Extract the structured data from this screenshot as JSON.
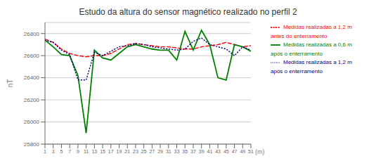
{
  "chart_data": {
    "type": "line",
    "title": "Estudo da altura do sensor magnético realizado no perfil 2",
    "xlabel": "(m)",
    "ylabel": "nT",
    "x": [
      1,
      3,
      5,
      7,
      9,
      11,
      13,
      15,
      17,
      19,
      21,
      23,
      25,
      27,
      29,
      31,
      33,
      35,
      37,
      39,
      41,
      43,
      45,
      47,
      49,
      51
    ],
    "xlim": [
      1,
      51
    ],
    "xticks": [
      1,
      3,
      5,
      7,
      9,
      11,
      13,
      15,
      17,
      19,
      21,
      23,
      25,
      27,
      29,
      31,
      33,
      35,
      37,
      39,
      41,
      43,
      45,
      47,
      49,
      51
    ],
    "ylim": [
      25800,
      26900
    ],
    "yticks": [
      25800,
      26000,
      26200,
      26400,
      26600,
      26800
    ],
    "grid": "y",
    "legend": "right",
    "series": [
      {
        "name": "Medidas realizadas a 1,2 m antes do enterramento",
        "color": "#FF0000",
        "line_style": "dashed",
        "values": [
          26750,
          26720,
          26660,
          26620,
          26600,
          26590,
          26600,
          26600,
          26620,
          26660,
          26700,
          26710,
          26700,
          26690,
          26680,
          26680,
          26670,
          26660,
          26660,
          26680,
          26690,
          26700,
          26720,
          26700,
          26680,
          26690
        ]
      },
      {
        "name": "Medidas realizadas a 0,6 m após o enterramento",
        "color": "#008000",
        "line_style": "solid",
        "values": [
          26740,
          26680,
          26610,
          26600,
          26420,
          25900,
          26650,
          26580,
          26560,
          26620,
          26680,
          26700,
          26680,
          26660,
          26650,
          26650,
          26560,
          26820,
          26650,
          26830,
          26700,
          26400,
          26380,
          26700,
          26680,
          26640
        ]
      },
      {
        "name": "Medidas realizadas a 1,2 m após o enterramento",
        "color": "#000080",
        "line_style": "dotted",
        "values": [
          26740,
          26720,
          26650,
          26610,
          26380,
          26380,
          26630,
          26600,
          26640,
          26680,
          26690,
          26710,
          26700,
          26680,
          26670,
          26660,
          26650,
          26660,
          26730,
          26760,
          26700,
          26680,
          26660,
          26600,
          26680,
          26650
        ]
      }
    ]
  }
}
